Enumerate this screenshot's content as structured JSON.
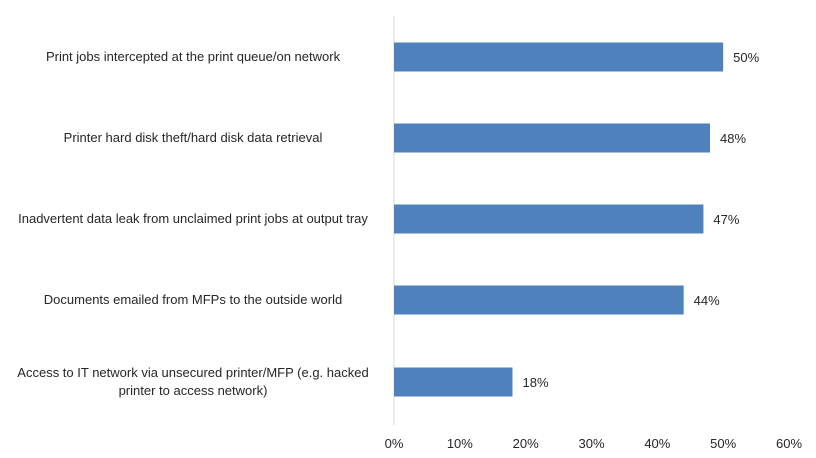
{
  "chart_data": {
    "type": "bar",
    "orientation": "horizontal",
    "categories": [
      "Print jobs intercepted at the print queue/on network",
      "Printer hard disk theft/hard disk data retrieval",
      "Inadvertent data leak from unclaimed print jobs at output tray",
      "Documents emailed from MFPs to the outside world",
      "Access to IT network via unsecured printer/MFP (e.g. hacked printer to access network)"
    ],
    "values": [
      50,
      48,
      47,
      44,
      18
    ],
    "data_labels": [
      "50%",
      "48%",
      "47%",
      "44%",
      "18%"
    ],
    "xlim": [
      0,
      60
    ],
    "x_ticks": [
      0,
      10,
      20,
      30,
      40,
      50,
      60
    ],
    "x_tick_labels": [
      "0%",
      "10%",
      "20%",
      "30%",
      "40%",
      "50%",
      "60%"
    ],
    "title": "",
    "xlabel": "",
    "ylabel": "",
    "grid": false,
    "legend": false,
    "bar_color": "#4f81bd",
    "axis_color": "#d9d9d9"
  }
}
